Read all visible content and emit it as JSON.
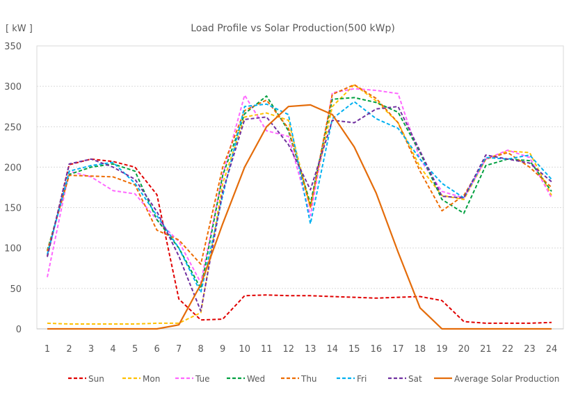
{
  "chart_data": {
    "type": "line",
    "title": "Load Profile vs Solar Production(500 kWp)",
    "ylabel": "[ kW ]",
    "xlabel": "",
    "categories": [
      "1",
      "2",
      "3",
      "4",
      "5",
      "6",
      "7",
      "8",
      "9",
      "10",
      "11",
      "12",
      "13",
      "14",
      "15",
      "16",
      "17",
      "18",
      "19",
      "20",
      "21",
      "22",
      "23",
      "24"
    ],
    "yticks": [
      0,
      50,
      100,
      150,
      200,
      250,
      300,
      350
    ],
    "ylim": [
      0,
      350
    ],
    "grid": true,
    "legend_position": "bottom",
    "series": [
      {
        "name": "Sun",
        "color": "#e00000",
        "dash": true,
        "values": [
          90,
          203,
          210,
          207,
          200,
          166,
          37,
          11,
          12,
          41,
          42,
          41,
          41,
          40,
          39,
          38,
          39,
          40,
          35,
          9,
          7,
          7,
          7,
          8
        ]
      },
      {
        "name": "Mon",
        "color": "#ffc000",
        "dash": true,
        "values": [
          7,
          6,
          6,
          6,
          6,
          7,
          7,
          20,
          180,
          262,
          267,
          258,
          150,
          275,
          302,
          282,
          255,
          200,
          165,
          160,
          210,
          220,
          218,
          165
        ]
      },
      {
        "name": "Tue",
        "color": "#ff66ff",
        "dash": true,
        "values": [
          64,
          195,
          188,
          171,
          167,
          135,
          108,
          57,
          190,
          289,
          245,
          238,
          140,
          292,
          297,
          295,
          291,
          210,
          170,
          162,
          210,
          221,
          212,
          162
        ]
      },
      {
        "name": "Wed",
        "color": "#00a040",
        "dash": true,
        "values": [
          97,
          191,
          200,
          204,
          195,
          135,
          100,
          50,
          190,
          266,
          288,
          245,
          155,
          284,
          286,
          280,
          268,
          218,
          160,
          143,
          202,
          210,
          208,
          170
        ]
      },
      {
        "name": "Thu",
        "color": "#ed6b00",
        "dash": true,
        "values": [
          96,
          190,
          189,
          188,
          178,
          122,
          110,
          80,
          200,
          270,
          283,
          248,
          150,
          290,
          302,
          285,
          255,
          195,
          146,
          165,
          210,
          218,
          200,
          175
        ]
      },
      {
        "name": "Fri",
        "color": "#00b0f0",
        "dash": true,
        "values": [
          92,
          195,
          202,
          206,
          180,
          140,
          100,
          45,
          165,
          275,
          278,
          265,
          130,
          260,
          281,
          260,
          248,
          210,
          180,
          162,
          212,
          210,
          215,
          185
        ]
      },
      {
        "name": "Sat",
        "color": "#7030a0",
        "dash": true,
        "values": [
          89,
          204,
          210,
          200,
          185,
          145,
          90,
          22,
          170,
          259,
          262,
          228,
          172,
          258,
          255,
          272,
          275,
          220,
          164,
          162,
          215,
          210,
          205,
          182
        ]
      },
      {
        "name": "Average Solar Production",
        "color": "#e46c0a",
        "dash": false,
        "values": [
          0,
          0,
          0,
          0,
          0,
          0,
          5,
          55,
          130,
          200,
          250,
          275,
          277,
          265,
          225,
          168,
          95,
          26,
          0,
          0,
          0,
          0,
          0,
          0
        ]
      }
    ]
  }
}
